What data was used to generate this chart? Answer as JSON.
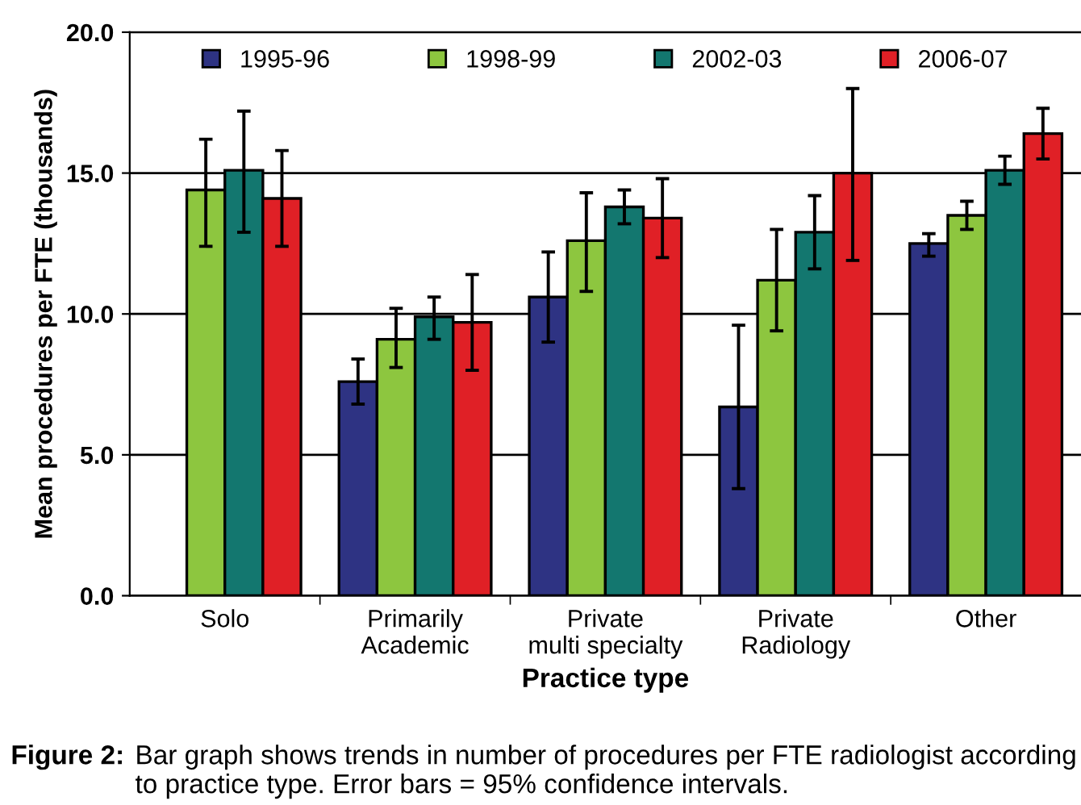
{
  "chart_data": {
    "type": "bar",
    "xlabel": "Practice type",
    "ylabel": "Mean procedures per FTE (thousands)",
    "categories": [
      "Solo",
      "Primarily\nAcademic",
      "Private\nmulti specialty",
      "Private\nRadiology",
      "Other"
    ],
    "series": [
      {
        "name": "1995-96",
        "color": "#2e3383",
        "values": [
          null,
          7.6,
          10.6,
          6.7,
          12.5
        ],
        "errors": [
          null,
          [
            6.8,
            8.4
          ],
          [
            9.0,
            12.2
          ],
          [
            3.8,
            9.6
          ],
          [
            12.05,
            12.85
          ]
        ]
      },
      {
        "name": "1998-99",
        "color": "#8dc63f",
        "values": [
          14.4,
          9.1,
          12.6,
          11.2,
          13.5
        ],
        "errors": [
          [
            12.4,
            16.2
          ],
          [
            8.1,
            10.2
          ],
          [
            10.8,
            14.3
          ],
          [
            9.4,
            13.0
          ],
          [
            13.0,
            14.0
          ]
        ]
      },
      {
        "name": "2002-03",
        "color": "#13776f",
        "values": [
          15.1,
          9.9,
          13.8,
          12.9,
          15.1
        ],
        "errors": [
          [
            12.9,
            17.2
          ],
          [
            9.1,
            10.6
          ],
          [
            13.2,
            14.4
          ],
          [
            11.6,
            14.2
          ],
          [
            14.6,
            15.6
          ]
        ]
      },
      {
        "name": "2006-07",
        "color": "#e02026",
        "values": [
          14.1,
          9.7,
          13.4,
          15.0,
          16.4
        ],
        "errors": [
          [
            12.4,
            15.8
          ],
          [
            8.0,
            11.4
          ],
          [
            12.0,
            14.8
          ],
          [
            11.9,
            18.0
          ],
          [
            15.5,
            17.3
          ]
        ]
      }
    ],
    "ylim": [
      0,
      20
    ],
    "yticks": [
      {
        "value": 0,
        "label": "0.0"
      },
      {
        "value": 5,
        "label": "5.0"
      },
      {
        "value": 10,
        "label": "10.0"
      },
      {
        "value": 15,
        "label": "15.0"
      },
      {
        "value": 20,
        "label": "20.0"
      }
    ],
    "grid": "y",
    "legend": "top",
    "annotations": [
      "Figure 2:",
      "Bar graph shows trends in number of procedures per FTE radiologist according to practice type. Error bars = 95% confidence intervals."
    ]
  }
}
